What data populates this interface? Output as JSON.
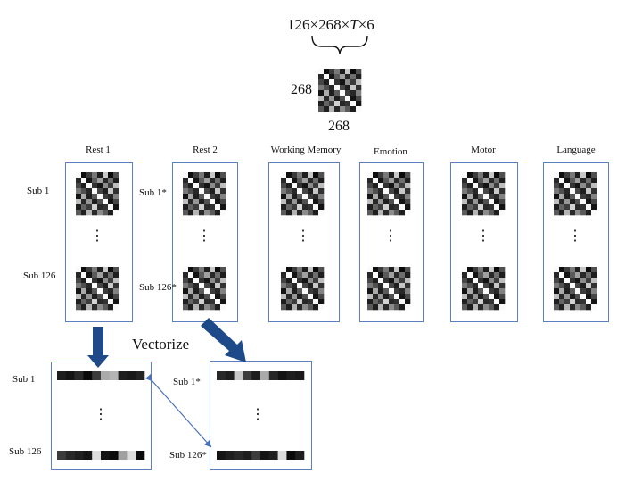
{
  "formula": {
    "a": "126",
    "times1": "×",
    "b": "268",
    "times2": "×",
    "t": "T",
    "times3": "×",
    "c": "6"
  },
  "matrix_dims": {
    "rows": "268",
    "cols": "268"
  },
  "columns": [
    {
      "title": "Rest 1",
      "sub_first": "Sub 1",
      "sub_last": "Sub 126"
    },
    {
      "title": "Rest 2",
      "sub_first": "Sub 1*",
      "sub_last": "Sub 126*"
    },
    {
      "title": "Working Memory"
    },
    {
      "title": "Emotion"
    },
    {
      "title": "Motor"
    },
    {
      "title": "Language"
    }
  ],
  "ellipsis": "⋮",
  "vectorize_label": "Vectorize",
  "vector_boxes": [
    {
      "sub_first": "Sub 1",
      "sub_last": "Sub 126"
    },
    {
      "sub_first": "Sub 1*",
      "sub_last": "Sub 126*"
    }
  ],
  "colors": {
    "box_border": "#5b7fbf",
    "arrow_fill": "#1f4a8a",
    "thin_arrow": "#4a72b8"
  }
}
